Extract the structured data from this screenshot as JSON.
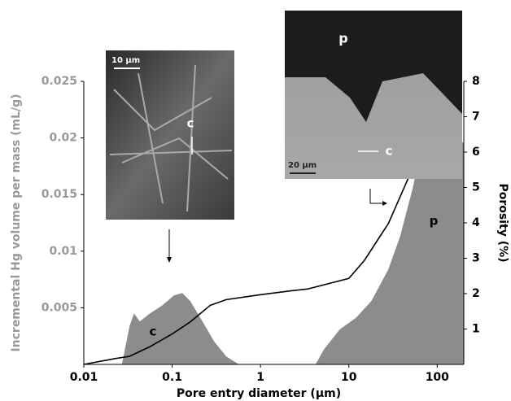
{
  "chart_data": {
    "type": "combo",
    "xlabel": "Pore entry diameter (µm)",
    "ylabel": "Incremental Hg volume per mass (mL/g)",
    "y2label": "Porosity (%)",
    "xlog": true,
    "xlim": [
      0.01,
      200
    ],
    "xticks": [
      0.01,
      0.1,
      1,
      10,
      100
    ],
    "ylim": [
      0,
      0.025
    ],
    "yticks": [
      0.005,
      0.01,
      0.015,
      0.02,
      0.025
    ],
    "y2lim": [
      0,
      8
    ],
    "y2ticks": [
      1,
      2,
      3,
      4,
      5,
      6,
      7,
      8
    ],
    "series": [
      {
        "type": "area",
        "color": "#8c8c8c",
        "axis": "y",
        "x": [
          0.027,
          0.033,
          0.037,
          0.043,
          0.056,
          0.077,
          0.105,
          0.13,
          0.16,
          0.22,
          0.3,
          0.41,
          0.57,
          1,
          2,
          4.2,
          5.2,
          7.9,
          12,
          18,
          28,
          38,
          53,
          71,
          89,
          110,
          135,
          165,
          180,
          200
        ],
        "values": [
          0,
          0.0034,
          0.0045,
          0.0038,
          0.0045,
          0.0052,
          0.0061,
          0.0063,
          0.0056,
          0.0038,
          0.002,
          0.0007,
          0,
          0,
          0,
          0,
          0.0013,
          0.0031,
          0.0041,
          0.0056,
          0.0084,
          0.0113,
          0.0156,
          0.0206,
          0.0227,
          0.0226,
          0.0206,
          0.0191,
          0.0199,
          0.0195
        ]
      },
      {
        "type": "line",
        "color": "#000000",
        "axis": "y2",
        "x": [
          0.01,
          0.022,
          0.033,
          0.056,
          0.1,
          0.16,
          0.27,
          0.41,
          1,
          2.2,
          3.4,
          10,
          15,
          28,
          47,
          64,
          100,
          135,
          165,
          180
        ],
        "values": [
          0,
          0.16,
          0.23,
          0.5,
          0.86,
          1.2,
          1.67,
          1.83,
          1.97,
          2.08,
          2.13,
          2.43,
          2.94,
          3.98,
          5.26,
          6.2,
          6.6,
          6.9,
          7.8,
          8.0
        ]
      }
    ],
    "annotations": [
      "c",
      "p"
    ],
    "insets": [
      {
        "scale": "10 µm",
        "labels": [
          "c"
        ]
      },
      {
        "scale": "20 µm",
        "labels": [
          "p",
          "c"
        ]
      }
    ]
  }
}
